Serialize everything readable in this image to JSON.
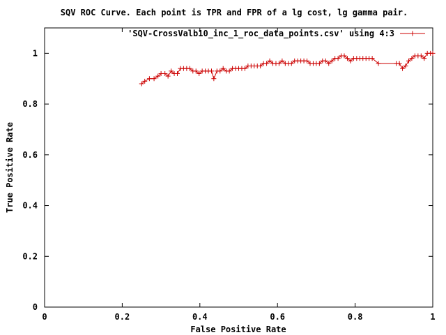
{
  "chart_data": {
    "type": "line",
    "title": "SQV ROC Curve. Each point is TPR and FPR of a lg cost, lg gamma pair.",
    "xlabel": "False Positive Rate",
    "ylabel": "True Positive Rate",
    "xlim": [
      0,
      1
    ],
    "ylim": [
      0,
      1.1
    ],
    "xticks": [
      0,
      0.2,
      0.4,
      0.6,
      0.8,
      1
    ],
    "yticks": [
      0,
      0.2,
      0.4,
      0.6,
      0.8,
      1
    ],
    "xtick_labels": [
      "0",
      "0.2",
      "0.4",
      "0.6",
      "0.8",
      "1"
    ],
    "ytick_labels": [
      "0",
      "0.2",
      "0.4",
      "0.6",
      "0.8",
      "1"
    ],
    "grid": false,
    "legend_position": "top-right",
    "series": [
      {
        "name": "'SQV-CrossValb10_inc_1_roc_data_points.csv' using 4:3",
        "color": "#cc0000",
        "marker": "plus",
        "x": [
          0.25,
          0.258,
          0.27,
          0.282,
          0.292,
          0.3,
          0.31,
          0.318,
          0.326,
          0.334,
          0.342,
          0.35,
          0.358,
          0.366,
          0.374,
          0.382,
          0.39,
          0.398,
          0.406,
          0.414,
          0.422,
          0.43,
          0.436,
          0.444,
          0.452,
          0.46,
          0.468,
          0.476,
          0.484,
          0.492,
          0.5,
          0.508,
          0.516,
          0.524,
          0.532,
          0.54,
          0.548,
          0.556,
          0.564,
          0.572,
          0.58,
          0.588,
          0.596,
          0.604,
          0.612,
          0.62,
          0.628,
          0.636,
          0.644,
          0.652,
          0.66,
          0.668,
          0.676,
          0.684,
          0.692,
          0.7,
          0.708,
          0.716,
          0.724,
          0.732,
          0.74,
          0.748,
          0.756,
          0.764,
          0.772,
          0.78,
          0.788,
          0.796,
          0.804,
          0.812,
          0.82,
          0.828,
          0.836,
          0.844,
          0.86,
          0.906,
          0.914,
          0.922,
          0.93,
          0.938,
          0.946,
          0.954,
          0.962,
          0.97,
          0.978,
          0.986,
          0.994,
          1.0
        ],
        "y": [
          0.88,
          0.89,
          0.9,
          0.9,
          0.91,
          0.92,
          0.92,
          0.91,
          0.93,
          0.92,
          0.92,
          0.94,
          0.94,
          0.94,
          0.94,
          0.93,
          0.93,
          0.92,
          0.93,
          0.93,
          0.93,
          0.93,
          0.9,
          0.93,
          0.93,
          0.94,
          0.93,
          0.93,
          0.94,
          0.94,
          0.94,
          0.94,
          0.94,
          0.95,
          0.95,
          0.95,
          0.95,
          0.95,
          0.96,
          0.96,
          0.97,
          0.96,
          0.96,
          0.96,
          0.97,
          0.96,
          0.96,
          0.96,
          0.97,
          0.97,
          0.97,
          0.97,
          0.97,
          0.96,
          0.96,
          0.96,
          0.96,
          0.97,
          0.97,
          0.96,
          0.97,
          0.98,
          0.98,
          0.99,
          0.99,
          0.98,
          0.97,
          0.98,
          0.98,
          0.98,
          0.98,
          0.98,
          0.98,
          0.98,
          0.96,
          0.96,
          0.96,
          0.94,
          0.95,
          0.97,
          0.98,
          0.99,
          0.99,
          0.99,
          0.98,
          1.0,
          1.0,
          1.0
        ]
      }
    ]
  }
}
